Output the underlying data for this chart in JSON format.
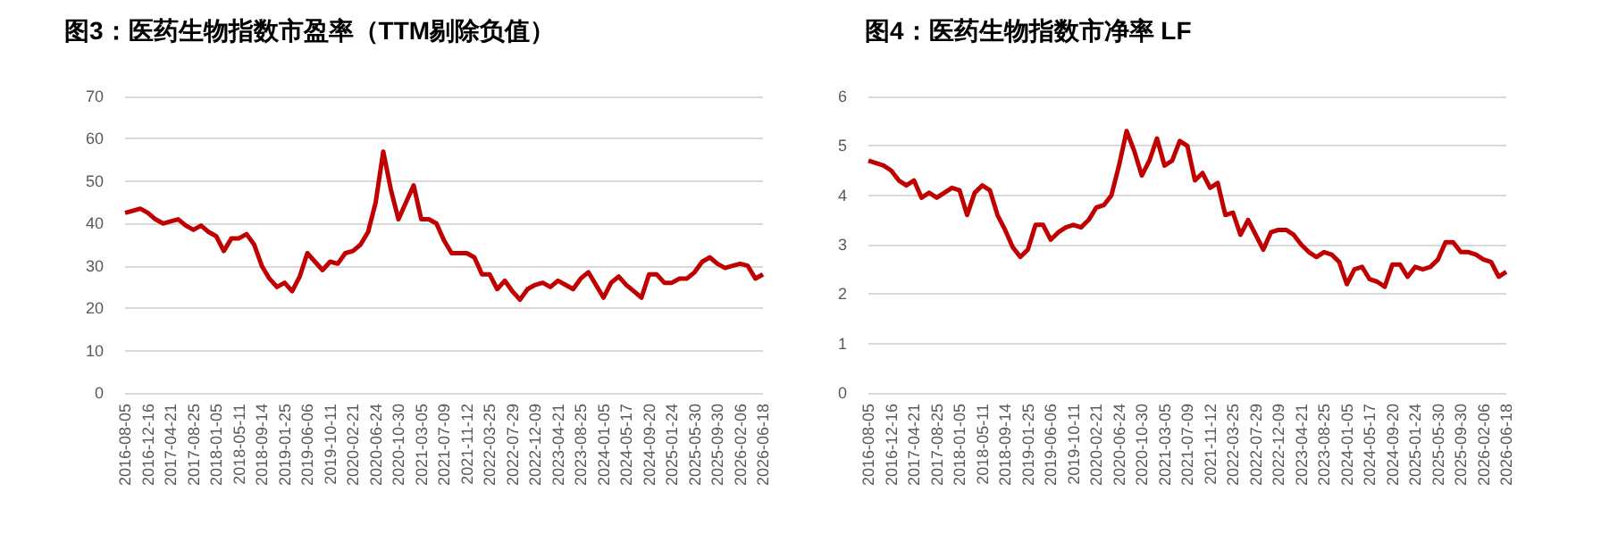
{
  "chart_data": [
    {
      "type": "line",
      "title": "图3：医药生物指数市盈率（TTM剔除负值）",
      "categories": [
        "2016-08-05",
        null,
        null,
        "2016-12-16",
        null,
        null,
        "2017-04-21",
        null,
        null,
        "2017-08-25",
        null,
        null,
        "2018-01-05",
        null,
        null,
        "2018-05-11",
        null,
        null,
        "2018-09-14",
        null,
        null,
        "2019-01-25",
        null,
        null,
        "2019-06-06",
        null,
        null,
        "2019-10-11",
        null,
        null,
        "2020-02-21",
        null,
        null,
        "2020-06-24",
        null,
        null,
        "2020-10-30",
        null,
        null,
        "2021-03-05",
        null,
        null,
        "2021-07-09",
        null,
        null,
        "2021-11-12",
        null,
        null,
        "2022-03-25",
        null,
        null,
        "2022-07-29",
        null,
        null,
        "2022-12-09",
        null,
        null,
        "2023-04-21",
        null,
        null,
        "2023-08-25",
        null,
        null,
        "2024-01-05",
        null,
        null,
        "2024-05-17",
        null,
        null,
        "2024-09-20",
        null,
        null,
        "2025-01-24",
        null,
        null,
        "2025-05-30",
        null,
        null,
        "2025-09-30",
        null,
        null,
        "2026-02-06",
        null,
        null,
        "2026-06-18"
      ],
      "series": [
        {
          "color": "#c00000",
          "values": [
            42.5,
            43,
            43.5,
            42.5,
            41,
            40,
            40.5,
            41,
            39.5,
            38.5,
            39.5,
            38,
            37,
            33.5,
            36.5,
            36.5,
            37.5,
            35,
            30,
            27,
            25,
            26,
            24,
            27.5,
            33,
            31,
            29,
            31,
            30.5,
            33,
            33.5,
            35,
            38,
            45,
            57,
            48,
            41,
            45,
            49,
            41,
            41,
            40,
            36,
            33,
            33,
            33,
            32,
            28,
            28,
            24.5,
            26.5,
            24,
            22,
            24.5,
            25.5,
            26,
            25,
            26.5,
            25.5,
            24.5,
            27,
            28.5,
            25.5,
            22.5,
            26,
            27.5,
            25.5,
            24,
            22.5,
            28,
            28,
            26,
            26,
            27,
            27,
            28.5,
            31,
            32,
            30.5,
            29.5,
            30,
            30.5,
            30,
            27,
            28
          ]
        }
      ],
      "ylim": [
        0,
        70
      ],
      "yticks": [
        0,
        10,
        20,
        30,
        40,
        50,
        60,
        70
      ],
      "grid": "y",
      "marker": "none"
    },
    {
      "type": "line",
      "title": "图4：医药生物指数市净率 LF",
      "categories": [
        "2016-08-05",
        null,
        null,
        "2016-12-16",
        null,
        null,
        "2017-04-21",
        null,
        null,
        "2017-08-25",
        null,
        null,
        "2018-01-05",
        null,
        null,
        "2018-05-11",
        null,
        null,
        "2018-09-14",
        null,
        null,
        "2019-01-25",
        null,
        null,
        "2019-06-06",
        null,
        null,
        "2019-10-11",
        null,
        null,
        "2020-02-21",
        null,
        null,
        "2020-06-24",
        null,
        null,
        "2020-10-30",
        null,
        null,
        "2021-03-05",
        null,
        null,
        "2021-07-09",
        null,
        null,
        "2021-11-12",
        null,
        null,
        "2022-03-25",
        null,
        null,
        "2022-07-29",
        null,
        null,
        "2022-12-09",
        null,
        null,
        "2023-04-21",
        null,
        null,
        "2023-08-25",
        null,
        null,
        "2024-01-05",
        null,
        null,
        "2024-05-17",
        null,
        null,
        "2024-09-20",
        null,
        null,
        "2025-01-24",
        null,
        null,
        "2025-05-30",
        null,
        null,
        "2025-09-30",
        null,
        null,
        "2026-02-06",
        null,
        null,
        "2026-06-18"
      ],
      "series": [
        {
          "color": "#c00000",
          "values": [
            4.7,
            4.65,
            4.6,
            4.5,
            4.3,
            4.2,
            4.3,
            3.95,
            4.05,
            3.95,
            4.05,
            4.15,
            4.1,
            3.6,
            4.05,
            4.2,
            4.1,
            3.6,
            3.3,
            2.95,
            2.75,
            2.9,
            3.4,
            3.4,
            3.1,
            3.25,
            3.35,
            3.4,
            3.35,
            3.5,
            3.75,
            3.8,
            4,
            4.6,
            5.3,
            4.9,
            4.4,
            4.7,
            5.15,
            4.6,
            4.7,
            5.1,
            5,
            4.3,
            4.45,
            4.15,
            4.25,
            3.6,
            3.65,
            3.2,
            3.5,
            3.2,
            2.9,
            3.25,
            3.3,
            3.3,
            3.2,
            3,
            2.85,
            2.75,
            2.85,
            2.8,
            2.65,
            2.2,
            2.5,
            2.55,
            2.3,
            2.25,
            2.15,
            2.6,
            2.6,
            2.35,
            2.55,
            2.5,
            2.55,
            2.7,
            3.05,
            3.05,
            2.85,
            2.85,
            2.8,
            2.7,
            2.65,
            2.35,
            2.45
          ]
        }
      ],
      "ylim": [
        0,
        6
      ],
      "yticks": [
        0,
        1,
        2,
        3,
        4,
        5,
        6
      ],
      "grid": "y",
      "marker": "none"
    }
  ]
}
